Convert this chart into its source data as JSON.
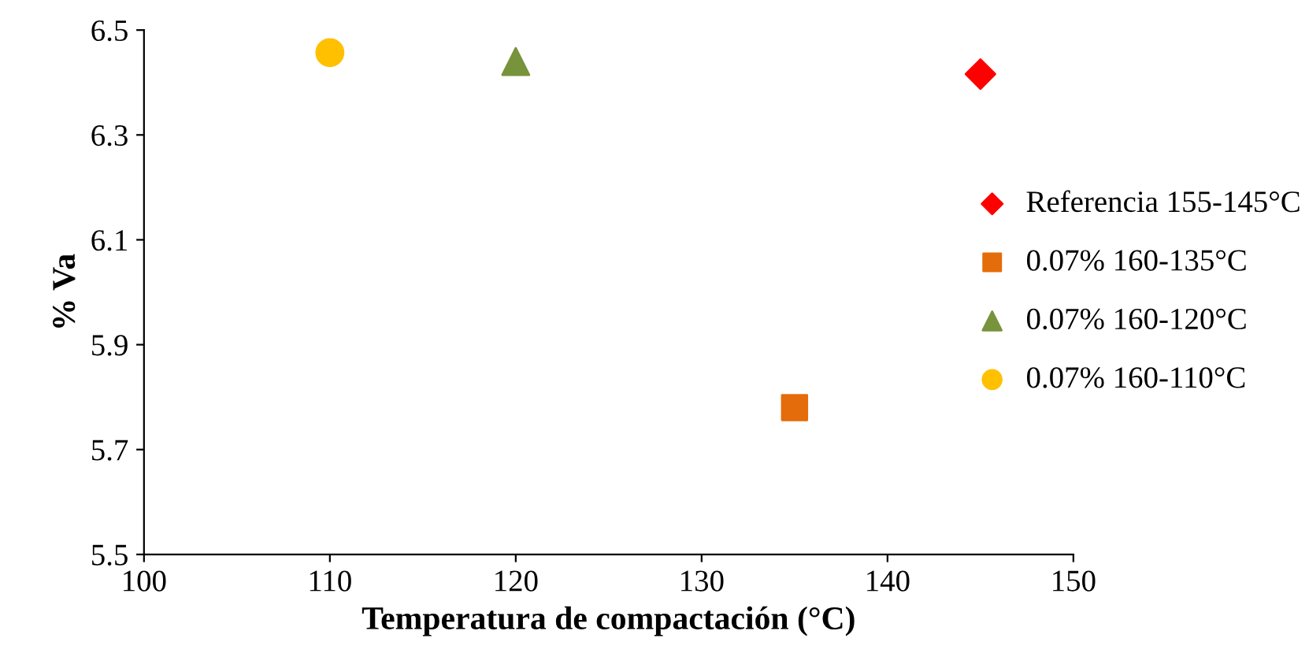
{
  "chart_data": {
    "type": "scatter",
    "xlabel": "Temperatura de compactación (°C)",
    "ylabel": "% Va",
    "series": [
      {
        "name": "Referencia 155-145°C",
        "color": "#ff0000",
        "x": [
          145
        ],
        "values": [
          6.416
        ],
        "marker": "diamond"
      },
      {
        "name": "0.07% 160-135°C",
        "color": "#e46c0a",
        "x": [
          135
        ],
        "values": [
          5.78
        ],
        "marker": "square"
      },
      {
        "name": "0.07% 160-120°C",
        "color": "#77933c",
        "x": [
          120
        ],
        "values": [
          6.44
        ],
        "marker": "triangle"
      },
      {
        "name": "0.07% 160-110°C",
        "color": "#ffc000",
        "x": [
          110
        ],
        "values": [
          6.457
        ],
        "marker": "circle"
      }
    ],
    "xlim": [
      100,
      150
    ],
    "xticks": [
      100,
      110,
      120,
      130,
      140,
      150
    ],
    "ylim": [
      5.5,
      6.5
    ],
    "yticks": [
      5.5,
      5.7,
      5.9,
      6.1,
      6.3,
      6.5
    ],
    "grid": false,
    "legend": "right"
  }
}
